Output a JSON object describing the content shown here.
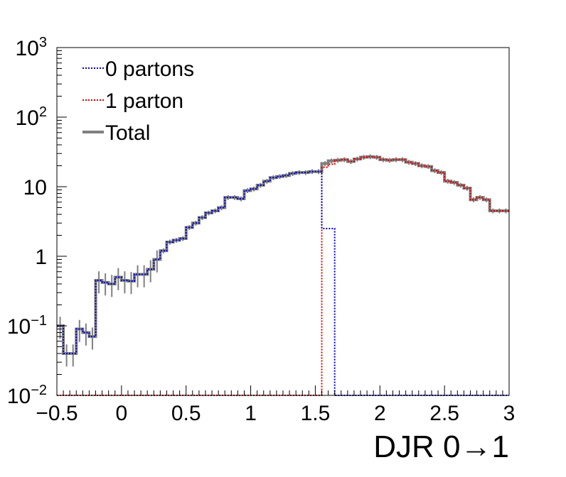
{
  "chart_data": {
    "type": "line",
    "style": "step-histogram",
    "title": "",
    "xlabel": "DJR 0→1",
    "ylabel": "",
    "xlim": [
      -0.5,
      3.0
    ],
    "ylim": [
      0.01,
      1000
    ],
    "yscale": "log",
    "grid": false,
    "legend_position": "top-left",
    "x_ticks": [
      "−0.5",
      "0",
      "0.5",
      "1",
      "1.5",
      "2",
      "2.5",
      "3"
    ],
    "x_tick_values": [
      -0.5,
      0,
      0.5,
      1,
      1.5,
      2,
      2.5,
      3
    ],
    "y_ticks": [
      {
        "value": 0.01,
        "base": "10",
        "exp": "−2"
      },
      {
        "value": 0.1,
        "base": "10",
        "exp": "−1"
      },
      {
        "value": 1,
        "base": "1",
        "exp": ""
      },
      {
        "value": 10,
        "base": "10",
        "exp": ""
      },
      {
        "value": 100,
        "base": "10",
        "exp": "2"
      },
      {
        "value": 1000,
        "base": "10",
        "exp": "3"
      }
    ],
    "bin_edges_start": -0.5,
    "bin_width": 0.05,
    "series": [
      {
        "name": "0 partons",
        "color": "#0000cc",
        "dash": "dotted",
        "values": [
          0.1,
          0.04,
          0.04,
          0.09,
          0.08,
          0.07,
          0.45,
          0.42,
          0.4,
          0.5,
          0.45,
          0.44,
          0.55,
          0.55,
          0.65,
          0.9,
          1.2,
          1.6,
          1.7,
          1.8,
          2.6,
          3.0,
          3.6,
          4.2,
          4.5,
          5.0,
          7.0,
          7.0,
          6.7,
          8.8,
          9.3,
          10.5,
          12.0,
          13.5,
          14.0,
          14.5,
          15.5,
          16.0,
          16.0,
          16.5,
          16.5,
          2.5,
          2.5,
          0.01,
          0.01,
          0.01,
          0.01,
          0.01,
          0.01,
          0.01,
          0.01,
          0.01,
          0.01,
          0.01,
          0.01,
          0.01,
          0.01,
          0.01,
          0.01,
          0.01,
          0.01,
          0.01,
          0.01,
          0.01,
          0.01,
          0.01,
          0.01,
          0.01,
          0.01,
          0.01
        ]
      },
      {
        "name": "1 parton",
        "color": "#dd0000",
        "dash": "dotted",
        "values": [
          0.01,
          0.01,
          0.01,
          0.01,
          0.01,
          0.01,
          0.01,
          0.01,
          0.01,
          0.01,
          0.01,
          0.01,
          0.01,
          0.01,
          0.01,
          0.01,
          0.01,
          0.01,
          0.01,
          0.01,
          0.01,
          0.01,
          0.01,
          0.01,
          0.01,
          0.01,
          0.01,
          0.01,
          0.01,
          0.01,
          0.01,
          0.01,
          0.01,
          0.01,
          0.01,
          0.01,
          0.01,
          0.01,
          0.01,
          0.01,
          0.01,
          19.0,
          21.0,
          24.0,
          24.5,
          23.0,
          25.0,
          26.5,
          27.0,
          26.5,
          24.5,
          24.0,
          24.5,
          24.5,
          22.5,
          21.5,
          20.0,
          19.5,
          17.0,
          16.0,
          12.0,
          11.5,
          10.5,
          9.5,
          6.5,
          7.0,
          6.5,
          4.5,
          4.5,
          4.5
        ]
      },
      {
        "name": "Total",
        "color": "#808080",
        "dash": "solid",
        "values": [
          0.1,
          0.04,
          0.04,
          0.09,
          0.08,
          0.07,
          0.45,
          0.42,
          0.4,
          0.5,
          0.45,
          0.44,
          0.55,
          0.55,
          0.65,
          0.9,
          1.2,
          1.6,
          1.7,
          1.8,
          2.6,
          3.0,
          3.6,
          4.2,
          4.5,
          5.0,
          7.0,
          7.0,
          6.7,
          8.8,
          9.3,
          10.5,
          12.0,
          13.5,
          14.0,
          14.5,
          15.5,
          16.0,
          16.0,
          16.5,
          16.5,
          21.5,
          23.5,
          24.0,
          24.5,
          23.0,
          25.0,
          26.5,
          27.0,
          26.5,
          24.5,
          24.0,
          24.5,
          24.5,
          22.5,
          21.5,
          20.0,
          19.5,
          17.0,
          16.0,
          12.0,
          11.5,
          10.5,
          9.5,
          6.5,
          7.0,
          6.5,
          4.5,
          4.5,
          4.5
        ]
      }
    ]
  }
}
